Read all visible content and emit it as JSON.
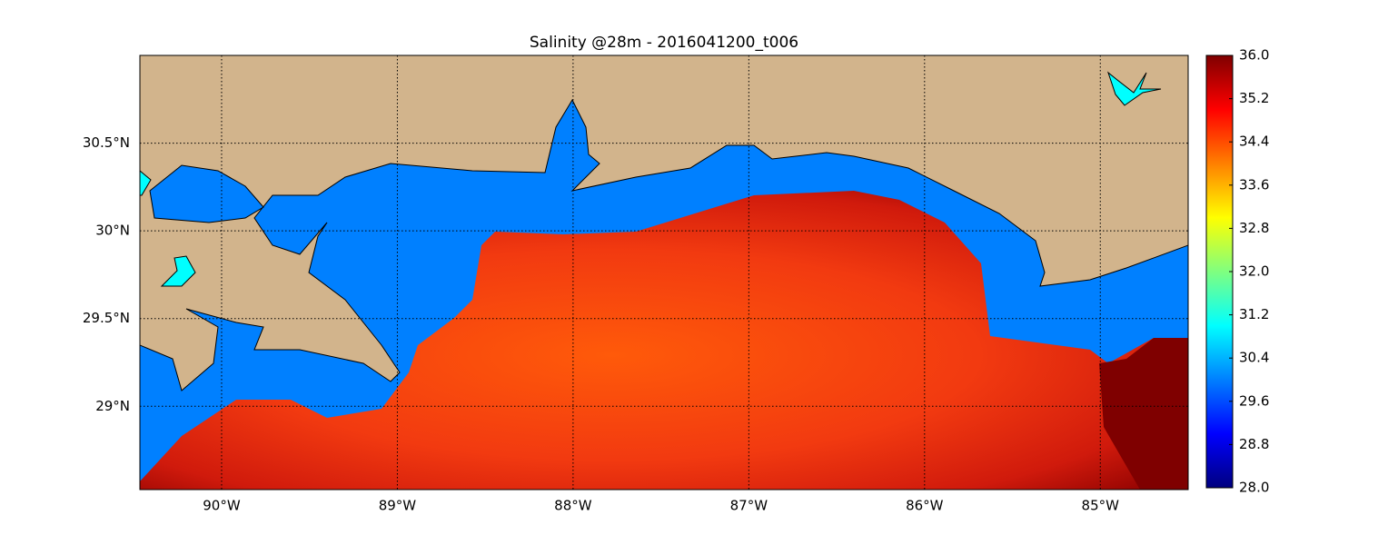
{
  "map": {
    "title": "Salinity @28m - 2016041200_t006",
    "xlim": [
      -90.465,
      -84.5
    ],
    "ylim": [
      28.525,
      31.0
    ],
    "xticks": [
      {
        "value": -90,
        "label": "90°W"
      },
      {
        "value": -89,
        "label": "89°W"
      },
      {
        "value": -88,
        "label": "88°W"
      },
      {
        "value": -87,
        "label": "87°W"
      },
      {
        "value": -86,
        "label": "86°W"
      },
      {
        "value": -85,
        "label": "85°W"
      }
    ],
    "yticks": [
      {
        "value": 29,
        "label": "29°N"
      },
      {
        "value": 29.5,
        "label": "29.5°N"
      },
      {
        "value": 30,
        "label": "30°N"
      },
      {
        "value": 30.5,
        "label": "30.5°N"
      }
    ],
    "grid": true
  },
  "colorbar": {
    "lim": [
      28,
      36
    ],
    "ticks": [
      {
        "value": 28,
        "label": "28.0"
      },
      28.8,
      29.6,
      30.4,
      31.2,
      {
        "value": 32,
        "label": "32.0"
      },
      32.8,
      33.6,
      34.4,
      35.2,
      {
        "value": 36,
        "label": "36.0"
      }
    ]
  }
}
